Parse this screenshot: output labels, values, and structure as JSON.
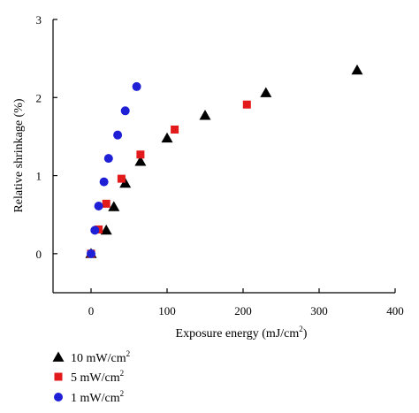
{
  "chart_data": {
    "type": "scatter",
    "xlabel_main": "Exposure energy (mJ/cm",
    "xlabel_sup": "2",
    "xlabel_end": ")",
    "ylabel": "Relative shrinkage (%)",
    "xlim": [
      -50,
      400
    ],
    "ylim": [
      -0.5,
      3
    ],
    "x_ticks": [
      0,
      100,
      200,
      300,
      400
    ],
    "y_ticks": [
      0,
      1,
      2,
      3
    ],
    "grid": false,
    "legend_position": "bottom-left",
    "series": [
      {
        "name": "10 mW/cm2",
        "label_main": "10 mW/cm",
        "label_sup": "2",
        "marker": "triangle",
        "color": "#000000",
        "x": [
          0,
          20,
          30,
          45,
          65,
          100,
          150,
          230,
          350
        ],
        "y": [
          0,
          0.3,
          0.6,
          0.9,
          1.18,
          1.48,
          1.77,
          2.06,
          2.35
        ]
      },
      {
        "name": "5 mW/cm2",
        "label_main": "5 mW/cm",
        "label_sup": "2",
        "marker": "square",
        "color": "#e31a1c",
        "x": [
          0,
          10,
          20,
          40,
          65,
          110,
          205
        ],
        "y": [
          0,
          0.31,
          0.64,
          0.96,
          1.27,
          1.59,
          1.91
        ]
      },
      {
        "name": "1 mW/cm2",
        "label_main": "1 mW/cm",
        "label_sup": "2",
        "marker": "circle",
        "color": "#1f1fd6",
        "x": [
          0,
          5,
          10,
          17,
          23,
          35,
          45,
          60
        ],
        "y": [
          0,
          0.3,
          0.61,
          0.92,
          1.22,
          1.52,
          1.83,
          2.14
        ]
      }
    ]
  }
}
